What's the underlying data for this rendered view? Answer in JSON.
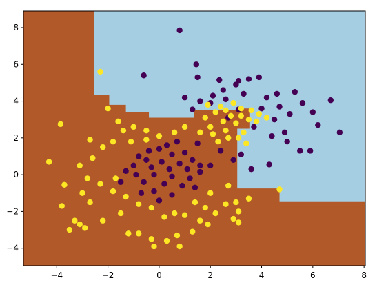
{
  "chart_data": {
    "type": "scatter",
    "title": "",
    "xlabel": "",
    "ylabel": "",
    "xlim": [
      -5.3,
      8.05
    ],
    "ylim": [
      -4.95,
      8.9
    ],
    "xticks": [
      -4,
      -2,
      0,
      2,
      4,
      6,
      8
    ],
    "yticks": [
      -4,
      -2,
      0,
      2,
      4,
      6,
      8
    ],
    "xtick_labels": [
      "−4",
      "−2",
      "0",
      "2",
      "4",
      "6",
      "8"
    ],
    "ytick_labels": [
      "−4",
      "−2",
      "0",
      "2",
      "4",
      "6",
      "8"
    ],
    "grid": false,
    "legend": "none",
    "background_regions": {
      "description": "decision-tree style classification regions",
      "class_0_color": "#a6cee3",
      "class_1_color": "#b15928",
      "class_0_region": [
        [
          -2.55,
          8.9
        ],
        [
          -2.55,
          4.35
        ],
        [
          -1.95,
          4.35
        ],
        [
          -1.95,
          3.8
        ],
        [
          -1.3,
          3.8
        ],
        [
          -1.3,
          3.4
        ],
        [
          -0.4,
          3.4
        ],
        [
          -0.4,
          3.1
        ],
        [
          1.35,
          3.1
        ],
        [
          1.35,
          3.5
        ],
        [
          3.05,
          3.5
        ],
        [
          3.05,
          3.6
        ],
        [
          3.55,
          3.6
        ],
        [
          3.55,
          2.5
        ],
        [
          3.05,
          2.5
        ],
        [
          3.05,
          -0.75
        ],
        [
          4.7,
          -0.75
        ],
        [
          4.7,
          -1.45
        ],
        [
          8.05,
          -1.45
        ],
        [
          8.05,
          8.9
        ]
      ]
    },
    "series": [
      {
        "class": 0,
        "color": "#440154",
        "points": [
          [
            0.8,
            7.85
          ],
          [
            -0.6,
            5.4
          ],
          [
            1.5,
            5.3
          ],
          [
            1.45,
            6.0
          ],
          [
            2.35,
            5.15
          ],
          [
            3.1,
            5.1
          ],
          [
            3.5,
            5.2
          ],
          [
            3.9,
            5.3
          ],
          [
            4.6,
            4.4
          ],
          [
            5.3,
            4.5
          ],
          [
            6.7,
            4.05
          ],
          [
            7.05,
            2.3
          ],
          [
            6.2,
            2.7
          ],
          [
            5.9,
            1.3
          ],
          [
            5.5,
            1.3
          ],
          [
            5.0,
            1.8
          ],
          [
            4.9,
            2.3
          ],
          [
            4.3,
            0.55
          ],
          [
            3.6,
            0.3
          ],
          [
            1.6,
            0.15
          ],
          [
            2.7,
            3.1
          ],
          [
            3.7,
            2.6
          ],
          [
            4.4,
            2.1
          ],
          [
            4.5,
            3.0
          ],
          [
            4.7,
            3.7
          ],
          [
            1.0,
            4.2
          ],
          [
            1.6,
            4.0
          ],
          [
            2.1,
            4.3
          ],
          [
            2.6,
            4.1
          ],
          [
            3.3,
            4.4
          ],
          [
            4.0,
            3.6
          ],
          [
            4.2,
            4.2
          ],
          [
            1.3,
            3.55
          ],
          [
            3.1,
            3.55
          ],
          [
            2.0,
            3.9
          ],
          [
            -0.4,
            1.3
          ],
          [
            0.0,
            1.4
          ],
          [
            0.5,
            1.1
          ],
          [
            1.0,
            1.2
          ],
          [
            -0.5,
            0.8
          ],
          [
            0.1,
            0.7
          ],
          [
            0.8,
            0.6
          ],
          [
            1.3,
            0.8
          ],
          [
            -1.0,
            0.5
          ],
          [
            -0.3,
            0.4
          ],
          [
            0.4,
            0.3
          ],
          [
            1.1,
            0.3
          ],
          [
            -0.9,
            0.0
          ],
          [
            -0.2,
            0.0
          ],
          [
            0.5,
            -0.1
          ],
          [
            1.2,
            -0.2
          ],
          [
            -0.6,
            -0.4
          ],
          [
            0.2,
            -0.5
          ],
          [
            0.9,
            -0.6
          ],
          [
            -0.2,
            -0.9
          ],
          [
            0.5,
            -1.1
          ],
          [
            -1.3,
            0.2
          ],
          [
            1.6,
            0.5
          ],
          [
            0.0,
            -1.4
          ],
          [
            -0.7,
            -1.0
          ],
          [
            1.5,
            1.7
          ],
          [
            2.4,
            1.3
          ],
          [
            2.9,
            0.8
          ],
          [
            3.2,
            1.1
          ],
          [
            2.0,
            0.5
          ],
          [
            -0.8,
            1.0
          ],
          [
            0.3,
            1.6
          ],
          [
            1.4,
            -0.7
          ],
          [
            -1.5,
            -0.4
          ],
          [
            0.7,
            1.8
          ],
          [
            5.6,
            3.9
          ],
          [
            5.1,
            3.3
          ],
          [
            6.0,
            3.4
          ],
          [
            3.0,
            4.9
          ],
          [
            2.5,
            4.6
          ]
        ]
      },
      {
        "class": 1,
        "color": "#fde725",
        "points": [
          [
            -2.3,
            5.6
          ],
          [
            -3.85,
            2.75
          ],
          [
            -4.3,
            0.7
          ],
          [
            -3.7,
            -0.55
          ],
          [
            -3.0,
            -1.0
          ],
          [
            -3.8,
            -1.7
          ],
          [
            -3.3,
            -2.5
          ],
          [
            -3.1,
            -2.7
          ],
          [
            -3.5,
            -3.0
          ],
          [
            -2.9,
            -2.9
          ],
          [
            -2.7,
            -1.5
          ],
          [
            -2.2,
            -2.5
          ],
          [
            -1.5,
            -2.1
          ],
          [
            -1.2,
            -3.2
          ],
          [
            -0.8,
            -3.2
          ],
          [
            -0.3,
            -3.5
          ],
          [
            -0.2,
            -3.9
          ],
          [
            0.3,
            -3.6
          ],
          [
            0.7,
            -3.3
          ],
          [
            0.8,
            -3.9
          ],
          [
            1.3,
            -3.1
          ],
          [
            1.9,
            -2.7
          ],
          [
            2.9,
            -2.4
          ],
          [
            3.1,
            -2.6
          ],
          [
            3.1,
            -2.0
          ],
          [
            3.0,
            -1.5
          ],
          [
            2.6,
            -1.6
          ],
          [
            2.2,
            -2.1
          ],
          [
            1.8,
            -1.8
          ],
          [
            1.4,
            -1.5
          ],
          [
            1.0,
            -2.2
          ],
          [
            0.6,
            -2.1
          ],
          [
            0.2,
            -2.3
          ],
          [
            -0.3,
            -1.8
          ],
          [
            -0.8,
            -1.6
          ],
          [
            -1.3,
            -1.2
          ],
          [
            -1.8,
            -0.9
          ],
          [
            -2.3,
            -0.5
          ],
          [
            -2.8,
            -0.2
          ],
          [
            -3.1,
            0.5
          ],
          [
            -2.6,
            0.9
          ],
          [
            -2.2,
            1.5
          ],
          [
            -1.8,
            1.8
          ],
          [
            -1.4,
            2.4
          ],
          [
            -1.0,
            2.6
          ],
          [
            -0.5,
            2.4
          ],
          [
            0.0,
            2.1
          ],
          [
            0.6,
            2.3
          ],
          [
            1.0,
            2.6
          ],
          [
            -2.7,
            1.9
          ],
          [
            -2.0,
            3.6
          ],
          [
            -1.6,
            2.9
          ],
          [
            -1.1,
            1.8
          ],
          [
            -0.5,
            1.9
          ],
          [
            4.7,
            -0.8
          ],
          [
            2.0,
            -1.0
          ],
          [
            2.7,
            -0.6
          ],
          [
            3.5,
            -1.3
          ],
          [
            1.6,
            -2.5
          ],
          [
            -1.7,
            -0.2
          ],
          [
            2.8,
            3.2
          ],
          [
            3.0,
            2.8
          ],
          [
            3.2,
            3.6
          ],
          [
            2.5,
            2.9
          ],
          [
            2.2,
            3.4
          ],
          [
            3.5,
            3.0
          ],
          [
            3.8,
            2.9
          ],
          [
            2.6,
            2.4
          ],
          [
            3.3,
            2.3
          ],
          [
            2.9,
            3.9
          ],
          [
            2.0,
            2.6
          ],
          [
            1.8,
            3.1
          ],
          [
            3.6,
            3.5
          ],
          [
            2.4,
            3.7
          ],
          [
            3.1,
            2.0
          ],
          [
            2.7,
            2.0
          ],
          [
            3.9,
            3.3
          ],
          [
            1.6,
            2.3
          ],
          [
            2.3,
            1.8
          ],
          [
            3.4,
            1.7
          ],
          [
            1.9,
            3.8
          ],
          [
            4.2,
            3.1
          ],
          [
            2.1,
            2.2
          ],
          [
            2.6,
            3.5
          ],
          [
            3.2,
            3.2
          ]
        ]
      }
    ]
  }
}
